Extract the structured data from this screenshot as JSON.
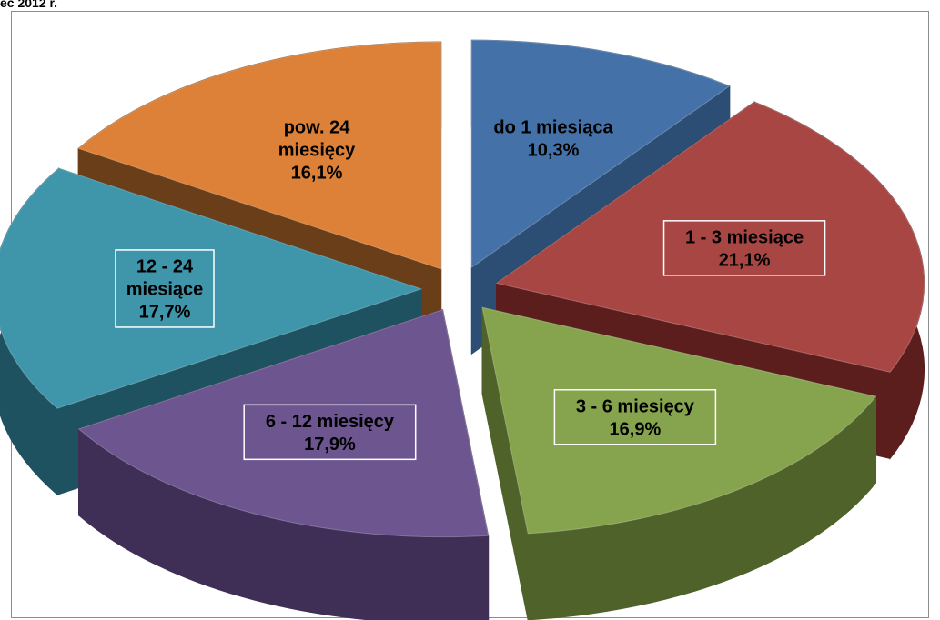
{
  "caption": "ec 2012 r.",
  "chart_data": {
    "type": "pie",
    "title": "",
    "slices": [
      {
        "label_lines": [
          "do 1 miesiąca"
        ],
        "pct": "10,3%",
        "value": 10.3,
        "color": "#4472a8",
        "side": "#2c4d74"
      },
      {
        "label_lines": [
          "1 - 3 miesiące"
        ],
        "pct": "21,1%",
        "value": 21.1,
        "color": "#a84644",
        "side": "#5b1e1d"
      },
      {
        "label_lines": [
          "3 - 6 miesięcy"
        ],
        "pct": "16,9%",
        "value": 16.9,
        "color": "#86a34d",
        "side": "#4e6229"
      },
      {
        "label_lines": [
          "6 - 12 miesięcy"
        ],
        "pct": "17,9%",
        "value": 17.9,
        "color": "#6d5590",
        "side": "#3f2f57"
      },
      {
        "label_lines": [
          "12 - 24",
          "miesiące"
        ],
        "pct": "17,7%",
        "value": 17.7,
        "color": "#3f96ab",
        "side": "#1f5261"
      },
      {
        "label_lines": [
          "pow. 24",
          "miesięcy"
        ],
        "pct": "16,1%",
        "value": 16.1,
        "color": "#dd8139",
        "side": "#6a3e18"
      }
    ]
  }
}
